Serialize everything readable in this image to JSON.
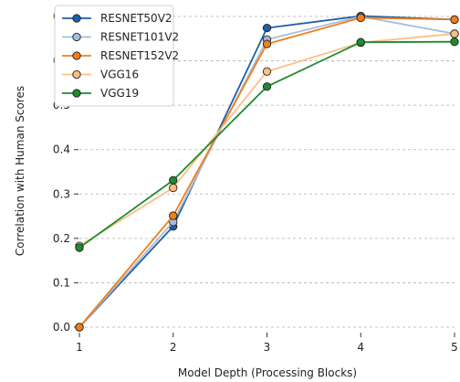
{
  "chart_data": {
    "type": "line",
    "title": "",
    "xlabel": "Model Depth (Processing Blocks)",
    "ylabel": "Correlation with Human Scores",
    "x": [
      1,
      2,
      3,
      4,
      5
    ],
    "xticks": [
      "1",
      "2",
      "3",
      "4",
      "5"
    ],
    "yticks": [
      "0.0",
      "0.1",
      "0.2",
      "0.3",
      "0.4",
      "0.5",
      "0.6",
      "0.7"
    ],
    "xlim": [
      1,
      5
    ],
    "ylim": [
      0,
      0.7
    ],
    "grid": "horizontal dashed",
    "legend_position": "top-left",
    "series": [
      {
        "name": "RESNET50V2",
        "color": "#1f5fa8",
        "values": [
          0.0,
          0.227,
          0.674,
          0.701,
          0.693
        ]
      },
      {
        "name": "RESNET101V2",
        "color": "#a6bddb",
        "values": [
          0.0,
          0.237,
          0.648,
          0.7,
          0.661
        ]
      },
      {
        "name": "RESNET152V2",
        "color": "#f07f1a",
        "values": [
          0.0,
          0.251,
          0.638,
          0.697,
          0.693
        ]
      },
      {
        "name": "VGG16",
        "color": "#fdbe85",
        "values": [
          0.183,
          0.314,
          0.576,
          0.641,
          0.661
        ]
      },
      {
        "name": "VGG19",
        "color": "#1e8a2e",
        "values": [
          0.179,
          0.331,
          0.542,
          0.642,
          0.643
        ]
      }
    ]
  }
}
